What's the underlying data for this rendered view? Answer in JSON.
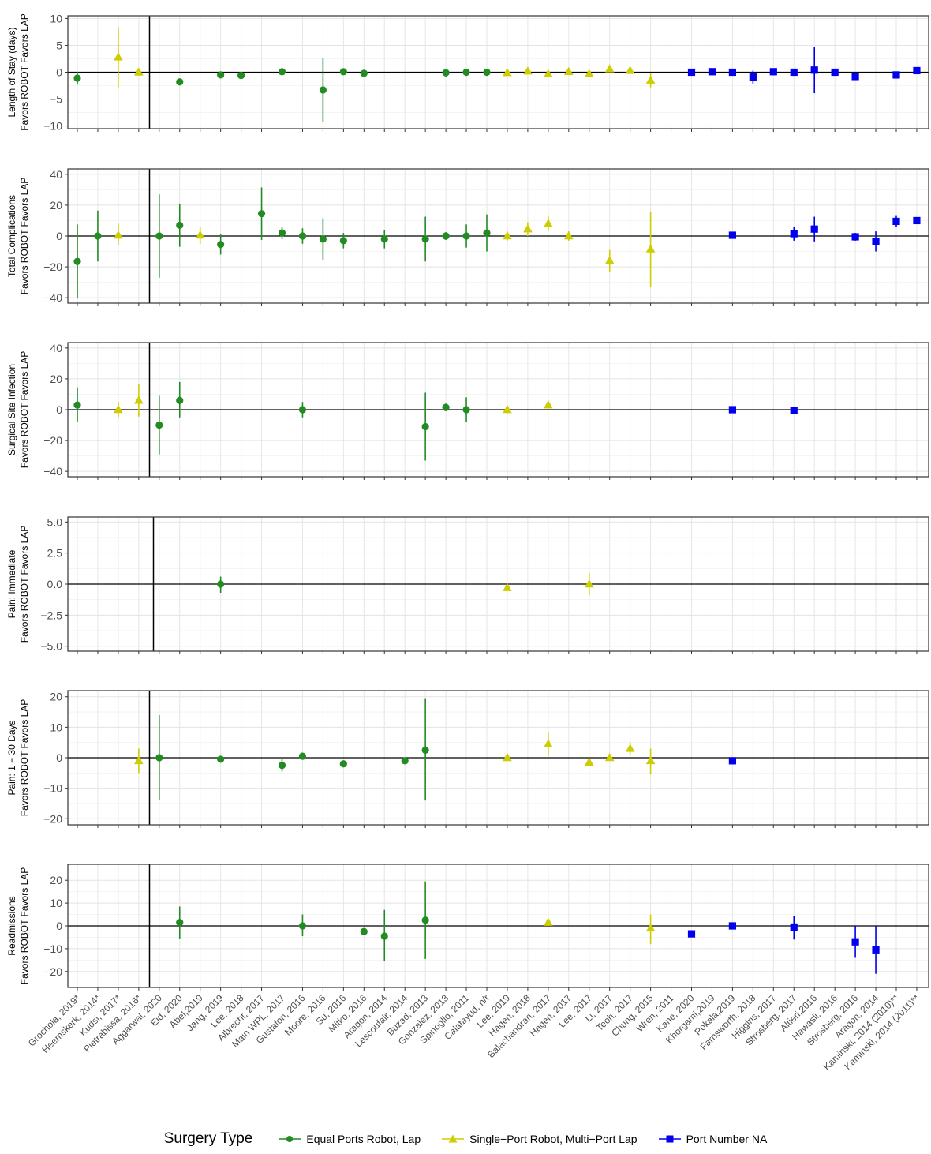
{
  "chart_data": {
    "type": "scatter",
    "subtype": "forest-plot-with-error-bars",
    "grid": true,
    "legend_position": "bottom",
    "legend_title": "Surgery Type",
    "categories": [
      "Grochola, 2019*",
      "Heemskerk, 2014*",
      "Kudsi, 2017*",
      "Pietrabissa, 2016*",
      "Aggarwal, 2020",
      "Eid, 2020",
      "Abel,2019",
      "Jang, 2019",
      "Lee, 2018",
      "Albrecht, 2017",
      "Main WPL, 2017",
      "Gustafon, 2016",
      "Moore, 2016",
      "Su, 2016",
      "Mitko, 2016",
      "Aragon, 2014",
      "Lescoufair, 2014",
      "Buzad, 2013",
      "Gonzalez, 2013",
      "Spinoglio, 2011",
      "Calatayud, n/r",
      "Lee, 2019",
      "Hagen, 2018",
      "Balachandran, 2017",
      "Hagen, 2017",
      "Lee, 2017",
      "Li, 2017",
      "Teoh, 2017",
      "Chung, 2015",
      "Wren, 2011",
      "Kane, 2020",
      "Khorgami,2019",
      "Pokala,2019",
      "Farnsworth, 2018",
      "Higgins, 2017",
      "Strosberg, 2017",
      "Altieri,2016",
      "Hawasli, 2016",
      "Strosberg, 2016",
      "Aragon, 2014",
      "Kaminski, 2014 (2010)**",
      "Kaminski, 2014 (2011)**"
    ],
    "series": [
      {
        "name": "Equal Ports Robot, Lap",
        "marker": "circle",
        "color": "#228B22"
      },
      {
        "name": "Single−Port Robot, Multi−Port Lap",
        "marker": "triangle",
        "color": "#CDCD00"
      },
      {
        "name": "Port Number NA",
        "marker": "square",
        "color": "#0000EE"
      }
    ],
    "panels": [
      {
        "ylabel_line1": "Length of Stay (days)",
        "ylabel_line2": "Favors ROBOT   Favors LAP",
        "ylim": [
          -10.5,
          10.5
        ],
        "yticks": [
          -10,
          -5,
          0,
          5,
          10
        ],
        "ytick_labels": [
          "−10",
          "−5",
          "0",
          "5",
          "10"
        ],
        "vline_after_index": 3.5,
        "points": [
          [
            0,
            0,
            -1.1,
            -2.3,
            0.1
          ],
          [
            2,
            1,
            2.8,
            -2.8,
            8.4
          ],
          [
            3,
            1,
            0,
            -0.3,
            0.3
          ],
          [
            5,
            0,
            -1.8,
            -2.0,
            -1.6
          ],
          [
            7,
            0,
            -0.5,
            -0.9,
            -0.2
          ],
          [
            8,
            0,
            -0.6,
            -0.9,
            -0.3
          ],
          [
            10,
            0,
            0.1,
            -0.1,
            0.3
          ],
          [
            12,
            0,
            -3.3,
            -9.2,
            2.7
          ],
          [
            13,
            0,
            0.1,
            -0.2,
            0.4
          ],
          [
            14,
            0,
            -0.2,
            -0.5,
            0.1
          ],
          [
            18,
            0,
            -0.1,
            -0.8,
            0.6
          ],
          [
            19,
            0,
            0,
            -0.3,
            0.3
          ],
          [
            20,
            0,
            0,
            -0.2,
            0.2
          ],
          [
            21,
            1,
            -0.1,
            -0.4,
            0.2
          ],
          [
            22,
            1,
            0.2,
            -0.1,
            0.5
          ],
          [
            23,
            1,
            -0.3,
            -0.6,
            0
          ],
          [
            24,
            1,
            0.1,
            -0.2,
            0.4
          ],
          [
            25,
            1,
            -0.3,
            -0.6,
            0
          ],
          [
            26,
            1,
            0.6,
            0.2,
            1.0
          ],
          [
            27,
            1,
            0.3,
            0,
            0.6
          ],
          [
            28,
            1,
            -1.5,
            -2.8,
            -0.2
          ],
          [
            30,
            2,
            0,
            -0.2,
            0.2
          ],
          [
            31,
            2,
            0.1,
            -0.1,
            0.3
          ],
          [
            32,
            2,
            0,
            -0.2,
            0.2
          ],
          [
            33,
            2,
            -0.9,
            -2.1,
            0.3
          ],
          [
            34,
            2,
            0.1,
            -0.1,
            0.3
          ],
          [
            35,
            2,
            0,
            -0.2,
            0.2
          ],
          [
            36,
            2,
            0.4,
            -3.9,
            4.7
          ],
          [
            37,
            2,
            0,
            -0.2,
            0.2
          ],
          [
            38,
            2,
            -0.8,
            -1.1,
            -0.5
          ],
          [
            40,
            2,
            -0.5,
            -0.7,
            -0.3
          ],
          [
            41,
            2,
            0.3,
            0.1,
            0.5
          ]
        ]
      },
      {
        "ylabel_line1": "Total Complications",
        "ylabel_line2": "Favors ROBOT   Favors LAP",
        "ylim": [
          -43.5,
          43.5
        ],
        "yticks": [
          -40,
          -20,
          0,
          20,
          40
        ],
        "ytick_labels": [
          "−40",
          "−20",
          "0",
          "20",
          "40"
        ],
        "vline_after_index": 3.5,
        "points": [
          [
            0,
            0,
            -16.5,
            -40.5,
            7.5
          ],
          [
            1,
            0,
            0,
            -16.5,
            16.5
          ],
          [
            2,
            1,
            0.5,
            -6,
            8
          ],
          [
            4,
            0,
            0,
            -27,
            27
          ],
          [
            5,
            0,
            7,
            -7,
            21
          ],
          [
            6,
            1,
            0.5,
            -5,
            6
          ],
          [
            7,
            0,
            -5.5,
            -12,
            1
          ],
          [
            9,
            0,
            14.5,
            -2.5,
            31.5
          ],
          [
            10,
            0,
            2,
            -2,
            6
          ],
          [
            11,
            0,
            0,
            -5,
            5
          ],
          [
            12,
            0,
            -2,
            -15.5,
            11.5
          ],
          [
            13,
            0,
            -3,
            -8,
            2
          ],
          [
            15,
            0,
            -2,
            -8,
            4
          ],
          [
            17,
            0,
            -2,
            -16.5,
            12.5
          ],
          [
            18,
            0,
            0,
            -2.5,
            2.5
          ],
          [
            19,
            0,
            0,
            -7.5,
            7.5
          ],
          [
            20,
            0,
            2,
            -10,
            14
          ],
          [
            21,
            1,
            0,
            -3,
            3
          ],
          [
            22,
            1,
            4.5,
            0,
            9
          ],
          [
            23,
            1,
            8,
            3,
            13
          ],
          [
            24,
            1,
            0,
            -3,
            3
          ],
          [
            26,
            1,
            -16,
            -23,
            -9
          ],
          [
            28,
            1,
            -8.5,
            -33,
            16
          ],
          [
            32,
            2,
            0.5,
            -1.5,
            2.5
          ],
          [
            35,
            2,
            1.5,
            -3,
            6
          ],
          [
            36,
            2,
            4.5,
            -3.5,
            12.5
          ],
          [
            38,
            2,
            -0.5,
            -3,
            2
          ],
          [
            39,
            2,
            -3.5,
            -10,
            3
          ],
          [
            40,
            2,
            9.5,
            6,
            13
          ],
          [
            41,
            2,
            10,
            8,
            12
          ]
        ]
      },
      {
        "ylabel_line1": "Surgical Site Infection",
        "ylabel_line2": "Favors ROBOT   Favors LAP",
        "ylim": [
          -43.5,
          43.5
        ],
        "yticks": [
          -40,
          -20,
          0,
          20,
          40
        ],
        "ytick_labels": [
          "−40",
          "−20",
          "0",
          "20",
          "40"
        ],
        "vline_after_index": 3.5,
        "points": [
          [
            0,
            0,
            3,
            -8,
            14.5
          ],
          [
            2,
            1,
            0,
            -5,
            5
          ],
          [
            3,
            1,
            6,
            -4.5,
            16.5
          ],
          [
            4,
            0,
            -10,
            -29,
            9
          ],
          [
            5,
            0,
            6,
            -5,
            18
          ],
          [
            11,
            0,
            0,
            -5,
            5
          ],
          [
            17,
            0,
            -11,
            -33,
            11
          ],
          [
            18,
            0,
            1.5,
            -1,
            4
          ],
          [
            19,
            0,
            0,
            -8,
            8
          ],
          [
            21,
            1,
            0,
            -2.5,
            2.5
          ],
          [
            23,
            1,
            3,
            1,
            5
          ],
          [
            32,
            2,
            0,
            -1.5,
            1.5
          ],
          [
            35,
            2,
            -0.5,
            -2,
            1
          ]
        ]
      },
      {
        "ylabel_line1": "Pain: Immediate",
        "ylabel_line2": "Favors ROBOT   Favors LAP",
        "ylim": [
          -5.4,
          5.4
        ],
        "yticks": [
          -5,
          -2.5,
          0,
          2.5,
          5
        ],
        "ytick_labels": [
          "−5.0",
          "−2.5",
          "0.0",
          "2.5",
          "5.0"
        ],
        "vline_after_index": 3.5,
        "points": [
          [
            7,
            0,
            0,
            -0.7,
            0.6
          ],
          [
            21,
            1,
            -0.3,
            -0.5,
            -0.1
          ],
          [
            25,
            1,
            0,
            -0.9,
            0.9
          ]
        ]
      },
      {
        "ylabel_line1": "Pain: 1 − 30 Days",
        "ylabel_line2": "Favors ROBOT   Favors LAP",
        "ylim": [
          -22,
          22
        ],
        "yticks": [
          -20,
          -10,
          0,
          10,
          20
        ],
        "ytick_labels": [
          "−20",
          "−10",
          "0",
          "10",
          "20"
        ],
        "vline_after_index": 3.5,
        "points": [
          [
            3,
            1,
            -1,
            -5,
            3
          ],
          [
            4,
            0,
            0,
            -14,
            14
          ],
          [
            7,
            0,
            -0.5,
            -0.8,
            -0.2
          ],
          [
            10,
            0,
            -2.5,
            -4.5,
            -0.5
          ],
          [
            11,
            0,
            0.5,
            -0.2,
            1.2
          ],
          [
            13,
            0,
            -2,
            -2.5,
            -1.5
          ],
          [
            16,
            0,
            -1,
            -1.3,
            -0.7
          ],
          [
            17,
            0,
            2.5,
            -14,
            19.5
          ],
          [
            21,
            1,
            0,
            -0.5,
            0.5
          ],
          [
            23,
            1,
            4.5,
            0.5,
            8.5
          ],
          [
            25,
            1,
            -1.5,
            -2,
            -1
          ],
          [
            26,
            1,
            0,
            -0.5,
            0.5
          ],
          [
            27,
            1,
            3,
            1,
            5
          ],
          [
            28,
            1,
            -1,
            -5.5,
            3
          ],
          [
            32,
            2,
            -1,
            -1.4,
            -0.6
          ]
        ]
      },
      {
        "ylabel_line1": "Readmissions",
        "ylabel_line2": "Favors ROBOT   Favors LAP",
        "ylim": [
          -27,
          27
        ],
        "yticks": [
          -20,
          -10,
          0,
          10,
          20
        ],
        "ytick_labels": [
          "−20",
          "−10",
          "0",
          "10",
          "20"
        ],
        "vline_after_index": 3.5,
        "points": [
          [
            5,
            0,
            1.5,
            -5.5,
            8.5
          ],
          [
            11,
            0,
            0,
            -4.5,
            5
          ],
          [
            14,
            0,
            -2.5,
            -3.5,
            -1.5
          ],
          [
            15,
            0,
            -4.5,
            -15.5,
            7
          ],
          [
            17,
            0,
            2.5,
            -14.5,
            19.5
          ],
          [
            23,
            1,
            1.5,
            0,
            3
          ],
          [
            28,
            1,
            -1,
            -8,
            5
          ],
          [
            30,
            2,
            -3.5,
            -5,
            -2
          ],
          [
            32,
            2,
            0,
            -1,
            1
          ],
          [
            35,
            2,
            -0.5,
            -6,
            4.5
          ],
          [
            38,
            2,
            -7,
            -14,
            0
          ],
          [
            39,
            2,
            -10.5,
            -21,
            0
          ]
        ]
      }
    ]
  }
}
